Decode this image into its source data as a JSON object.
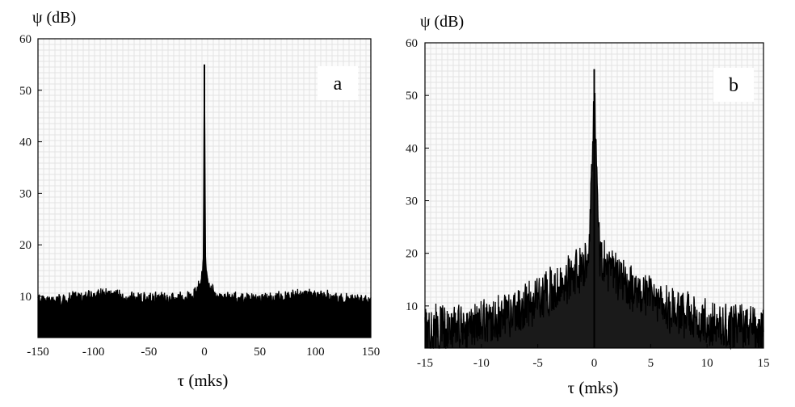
{
  "chart_data": [
    {
      "type": "line",
      "panel_label": "a",
      "ylabel": "ψ (dB)",
      "xlabel": "τ (mks)",
      "xlim": [
        -150,
        150
      ],
      "ylim": [
        2,
        60
      ],
      "x_ticks": [
        -150,
        -100,
        -50,
        0,
        50,
        100,
        150
      ],
      "y_ticks": [
        10,
        20,
        30,
        40,
        50,
        60
      ],
      "grid": true,
      "series": [
        {
          "x": [
            -150,
            -120,
            -90,
            -60,
            -30,
            -10,
            -4,
            -2,
            -1,
            0,
            1,
            2,
            4,
            10,
            30,
            60,
            90,
            120,
            150
          ],
          "values": [
            10,
            10.5,
            11.5,
            10.5,
            10.5,
            11,
            13,
            15,
            18,
            55,
            18,
            15,
            13,
            11,
            10.5,
            10.5,
            11.5,
            10.5,
            10
          ]
        }
      ]
    },
    {
      "type": "line",
      "panel_label": "b",
      "ylabel": "ψ (dB)",
      "xlabel": "τ (mks)",
      "xlim": [
        -15,
        15
      ],
      "ylim": [
        2,
        60
      ],
      "x_ticks": [
        -15,
        -10,
        -5,
        0,
        5,
        10,
        15
      ],
      "y_ticks": [
        10,
        20,
        30,
        40,
        50,
        60
      ],
      "grid": true,
      "series": [
        {
          "x": [
            -15,
            -12,
            -9,
            -6,
            -4,
            -2,
            -1,
            -0.5,
            0,
            0.5,
            1,
            2,
            4,
            6,
            9,
            12,
            15
          ],
          "values": [
            10,
            10.5,
            12,
            14,
            17,
            20,
            22,
            24,
            55,
            24,
            22,
            20,
            17,
            14,
            12,
            10.5,
            10
          ]
        }
      ]
    }
  ]
}
